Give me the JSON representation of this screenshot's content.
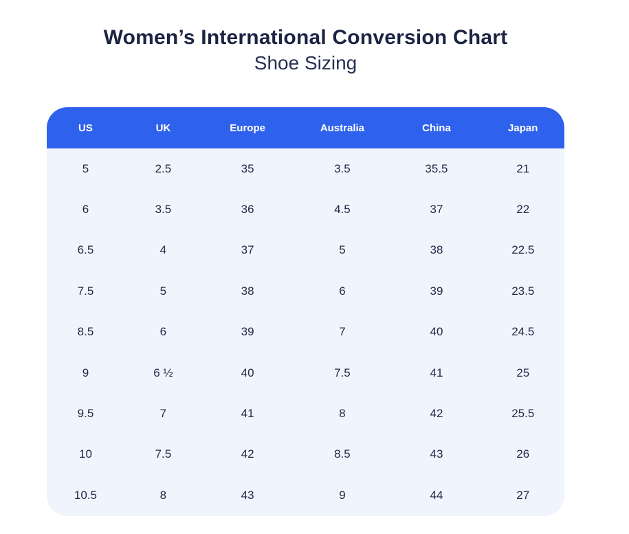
{
  "header": {
    "title": "Women’s International Conversion Chart",
    "subtitle": "Shoe Sizing"
  },
  "chart_data": {
    "type": "table",
    "title": "Women’s International Conversion Chart",
    "subtitle": "Shoe Sizing",
    "columns": [
      "US",
      "UK",
      "Europe",
      "Australia",
      "China",
      "Japan"
    ],
    "rows": [
      [
        "5",
        "2.5",
        "35",
        "3.5",
        "35.5",
        "21"
      ],
      [
        "6",
        "3.5",
        "36",
        "4.5",
        "37",
        "22"
      ],
      [
        "6.5",
        "4",
        "37",
        "5",
        "38",
        "22.5"
      ],
      [
        "7.5",
        "5",
        "38",
        "6",
        "39",
        "23.5"
      ],
      [
        "8.5",
        "6",
        "39",
        "7",
        "40",
        "24.5"
      ],
      [
        "9",
        "6 ½",
        "40",
        "7.5",
        "41",
        "25"
      ],
      [
        "9.5",
        "7",
        "41",
        "8",
        "42",
        "25.5"
      ],
      [
        "10",
        "7.5",
        "42",
        "8.5",
        "43",
        "26"
      ],
      [
        "10.5",
        "8",
        "43",
        "9",
        "44",
        "27"
      ]
    ]
  },
  "colors": {
    "header_bg": "#2f62ec",
    "header_text": "#ffffff",
    "body_bg": "#f0f4fc",
    "body_text": "#1f2847",
    "title_text": "#1c2444"
  }
}
